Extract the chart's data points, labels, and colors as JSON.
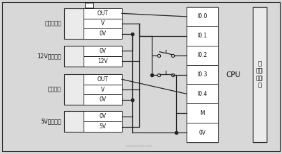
{
  "bg_color": "#d8d8d8",
  "line_color": "#222222",
  "white": "#ffffff",
  "light_gray": "#ebebeb",
  "text_color": "#111111",
  "figsize": [
    4.05,
    2.22
  ],
  "dpi": 100,
  "components": {
    "gd": {
      "label": "光电编码器",
      "terms": [
        "OUT",
        "V",
        "0V"
      ]
    },
    "dc12": {
      "label": "12V直流电源",
      "terms": [
        "0V",
        "12V"
      ]
    },
    "js": {
      "label": "接近开关",
      "terms": [
        "OUT",
        "V",
        "0V"
      ]
    },
    "dc5": {
      "label": "5V直流电源",
      "terms": [
        "0V",
        "5V"
      ]
    }
  },
  "cpu_terms": [
    "I0.0",
    "I0.1",
    "I0.2",
    "I0.3",
    "I0.4",
    "M",
    "0V"
  ],
  "watermark": "www.plcdiy.com"
}
